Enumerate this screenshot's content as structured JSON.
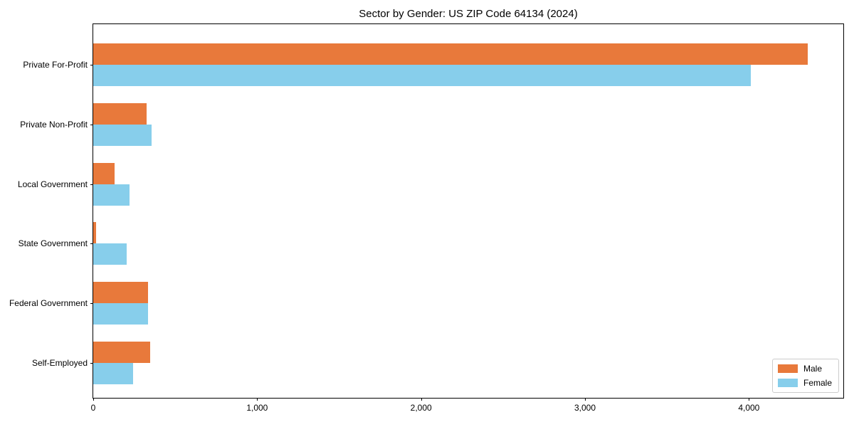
{
  "title": "Sector by Gender: US ZIP Code 64134 (2024)",
  "chart_data": {
    "type": "bar",
    "orientation": "horizontal",
    "title": "Sector by Gender: US ZIP Code 64134 (2024)",
    "categories": [
      "Private For-Profit",
      "Private Non-Profit",
      "Local Government",
      "State Government",
      "Federal Government",
      "Self-Employed"
    ],
    "series": [
      {
        "name": "Male",
        "color": "#e8793b",
        "values": [
          4360,
          325,
          130,
          17,
          335,
          347
        ]
      },
      {
        "name": "Female",
        "color": "#87ceeb",
        "values": [
          4010,
          355,
          220,
          205,
          333,
          243
        ]
      }
    ],
    "xlim": [
      0,
      4576
    ],
    "xticks": [
      0,
      1000,
      2000,
      3000,
      4000
    ],
    "xtick_labels": [
      "0",
      "1,000",
      "2,000",
      "3,000",
      "4,000"
    ],
    "xlabel": "",
    "ylabel": "",
    "grid": false,
    "legend": {
      "position": "lower right",
      "entries": [
        "Male",
        "Female"
      ]
    }
  }
}
